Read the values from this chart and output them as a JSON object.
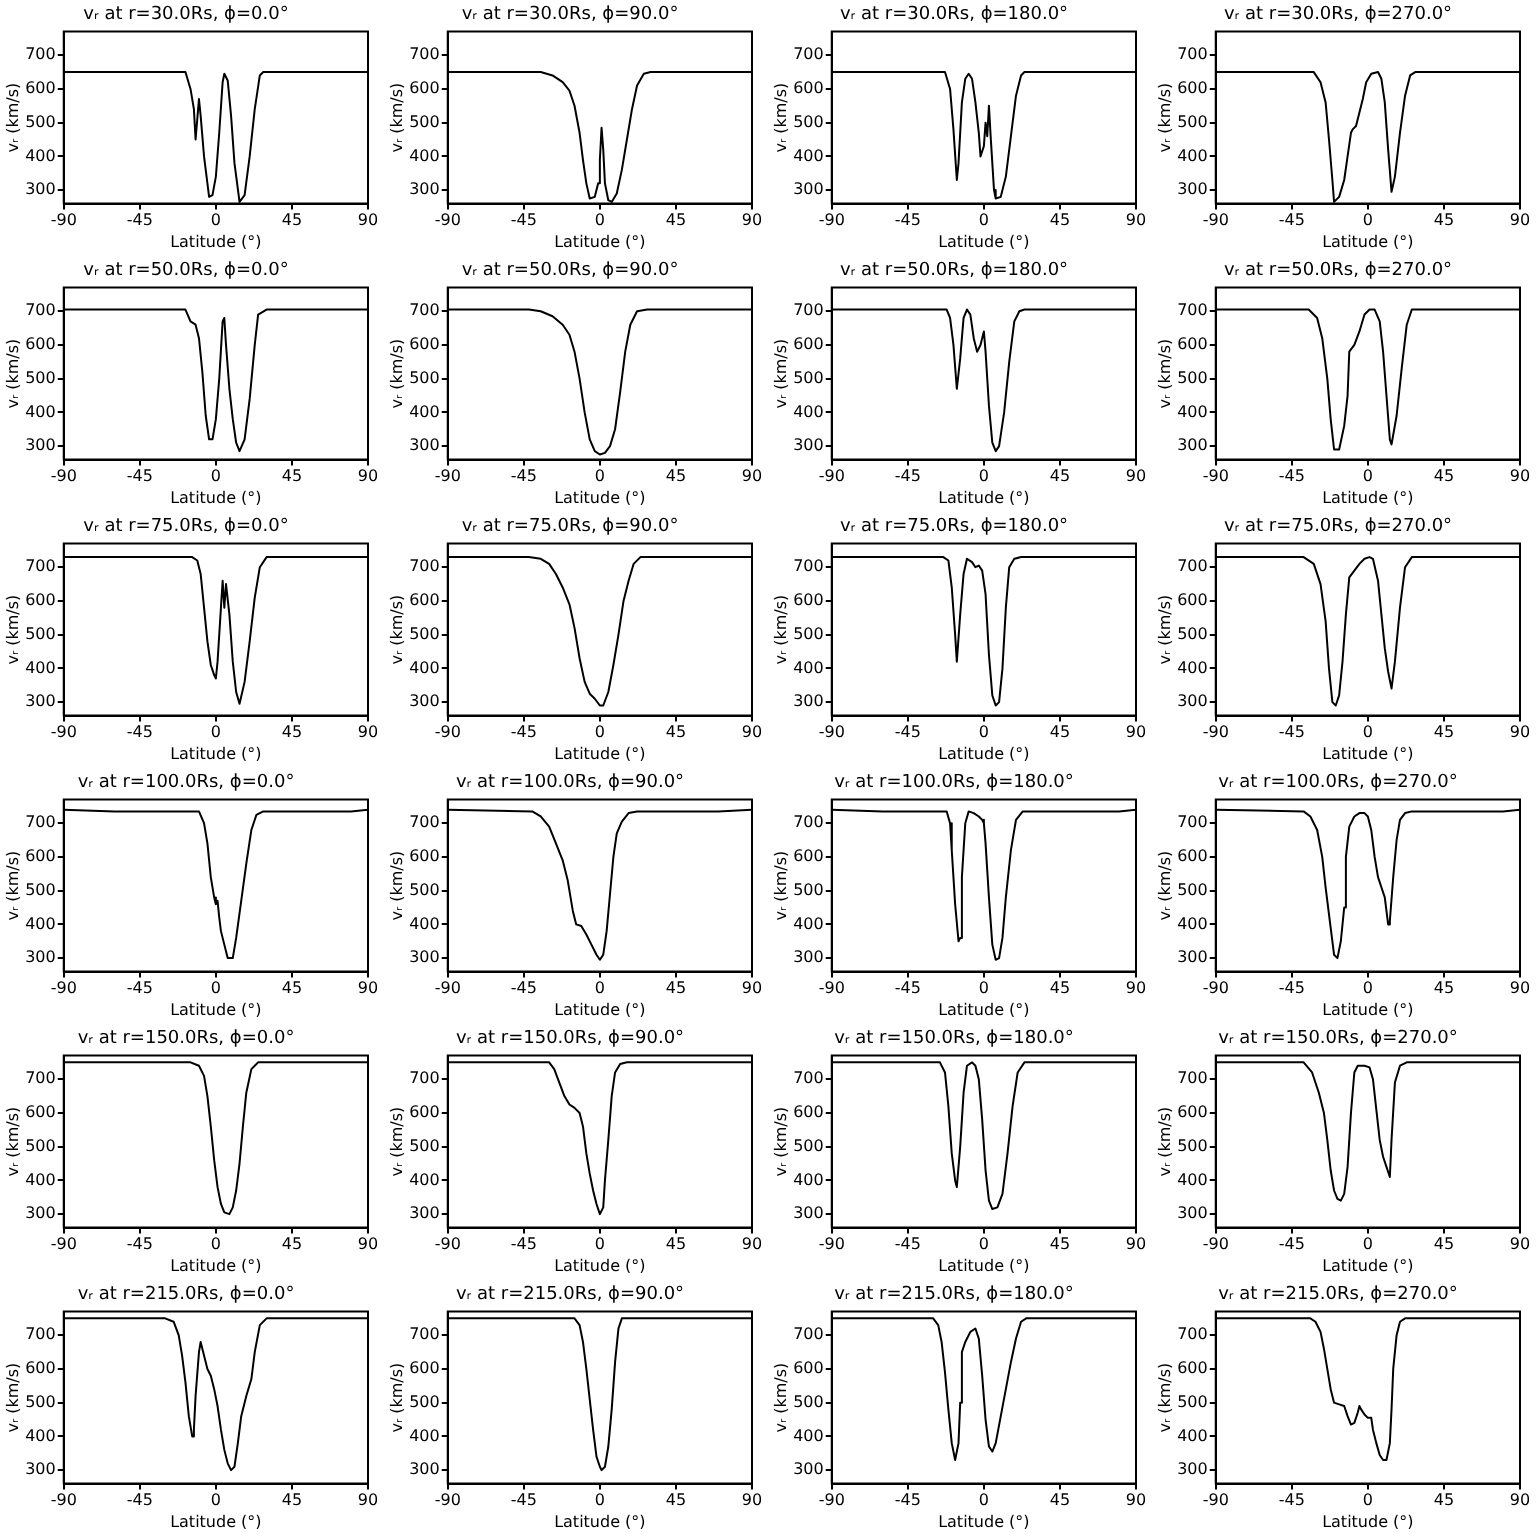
{
  "chart_data": [
    {
      "type": "line",
      "title": "vᵣ at r=30.0Rs, ϕ=0.0°",
      "xlabel": "Latitude (°)",
      "ylabel": "vᵣ (km/s)",
      "color": "#000000",
      "xlim": [
        -90,
        90
      ],
      "xticks": [
        -90,
        -45,
        0,
        45,
        90
      ],
      "ylim": [
        260,
        770
      ],
      "yticks": [
        300,
        400,
        500,
        600,
        700
      ],
      "x": [
        -90,
        -18,
        -15,
        -13,
        -12,
        -11,
        -10,
        -9,
        -7,
        -4,
        -2,
        0,
        2,
        4,
        5,
        7,
        9,
        11,
        14,
        17,
        20,
        23,
        26,
        28,
        90
      ],
      "values": [
        650,
        650,
        600,
        540,
        450,
        510,
        570,
        520,
        400,
        280,
        285,
        340,
        470,
        620,
        645,
        625,
        520,
        380,
        265,
        285,
        400,
        540,
        640,
        650,
        650
      ]
    },
    {
      "type": "line",
      "title": "vᵣ at r=30.0Rs, ϕ=90.0°",
      "xlabel": "Latitude (°)",
      "ylabel": "vᵣ (km/s)",
      "color": "#000000",
      "xlim": [
        -90,
        90
      ],
      "xticks": [
        -90,
        -45,
        0,
        45,
        90
      ],
      "ylim": [
        260,
        770
      ],
      "yticks": [
        300,
        400,
        500,
        600,
        700
      ],
      "x": [
        -90,
        -35,
        -28,
        -22,
        -18,
        -15,
        -12,
        -10,
        -8,
        -6,
        -3,
        -1,
        0,
        1,
        2,
        3,
        5,
        7,
        10,
        13,
        16,
        19,
        22,
        26,
        30,
        90
      ],
      "values": [
        650,
        650,
        640,
        620,
        595,
        550,
        470,
        390,
        320,
        275,
        280,
        320,
        390,
        485,
        420,
        320,
        270,
        265,
        290,
        360,
        450,
        540,
        610,
        645,
        650,
        650
      ]
    },
    {
      "type": "line",
      "title": "vᵣ at r=30.0Rs, ϕ=180.0°",
      "xlabel": "Latitude (°)",
      "ylabel": "vᵣ (km/s)",
      "color": "#000000",
      "xlim": [
        -90,
        90
      ],
      "xticks": [
        -90,
        -45,
        0,
        45,
        90
      ],
      "ylim": [
        260,
        770
      ],
      "yticks": [
        300,
        400,
        500,
        600,
        700
      ],
      "x": [
        -90,
        -23,
        -20,
        -18,
        -16,
        -15,
        -13,
        -11,
        -9,
        -7,
        -5,
        -3,
        -2,
        0,
        1,
        2,
        3,
        4,
        6,
        7,
        10,
        13,
        16,
        19,
        22,
        24,
        90
      ],
      "values": [
        650,
        650,
        600,
        480,
        330,
        380,
        560,
        630,
        645,
        630,
        560,
        470,
        400,
        430,
        500,
        460,
        550,
        460,
        300,
        275,
        280,
        340,
        460,
        580,
        640,
        650,
        650
      ]
    },
    {
      "type": "line",
      "title": "vᵣ at r=30.0Rs, ϕ=270.0°",
      "xlabel": "Latitude (°)",
      "ylabel": "vᵣ (km/s)",
      "color": "#000000",
      "xlim": [
        -90,
        90
      ],
      "xticks": [
        -90,
        -45,
        0,
        45,
        90
      ],
      "ylim": [
        260,
        770
      ],
      "yticks": [
        300,
        400,
        500,
        600,
        700
      ],
      "x": [
        -90,
        -32,
        -28,
        -25,
        -23,
        -21,
        -20,
        -17,
        -14,
        -12,
        -10,
        -9,
        -7,
        -5,
        -3,
        -1,
        2,
        6,
        8,
        10,
        12,
        14,
        16,
        19,
        22,
        25,
        28,
        90
      ],
      "values": [
        650,
        650,
        620,
        560,
        450,
        330,
        265,
        280,
        330,
        400,
        470,
        480,
        490,
        530,
        570,
        620,
        645,
        650,
        630,
        560,
        420,
        295,
        340,
        470,
        580,
        640,
        650,
        650
      ]
    },
    {
      "type": "line",
      "title": "vᵣ at r=50.0Rs, ϕ=0.0°",
      "xlabel": "Latitude (°)",
      "ylabel": "vᵣ (km/s)",
      "color": "#000000",
      "xlim": [
        -90,
        90
      ],
      "xticks": [
        -90,
        -45,
        0,
        45,
        90
      ],
      "ylim": [
        260,
        770
      ],
      "yticks": [
        300,
        400,
        500,
        600,
        700
      ],
      "x": [
        -90,
        -18,
        -15,
        -12,
        -10,
        -8,
        -6,
        -4,
        -2,
        0,
        2,
        4,
        5,
        6,
        8,
        10,
        12,
        14,
        17,
        20,
        23,
        25,
        30,
        90
      ],
      "values": [
        705,
        705,
        670,
        660,
        620,
        520,
        390,
        320,
        320,
        380,
        500,
        670,
        680,
        600,
        470,
        380,
        310,
        285,
        320,
        440,
        600,
        690,
        705,
        705
      ]
    },
    {
      "type": "line",
      "title": "vᵣ at r=50.0Rs, ϕ=90.0°",
      "xlabel": "Latitude (°)",
      "ylabel": "vᵣ (km/s)",
      "color": "#000000",
      "xlim": [
        -90,
        90
      ],
      "xticks": [
        -90,
        -45,
        0,
        45,
        90
      ],
      "ylim": [
        260,
        770
      ],
      "yticks": [
        300,
        400,
        500,
        600,
        700
      ],
      "x": [
        -90,
        -42,
        -35,
        -28,
        -22,
        -18,
        -15,
        -12,
        -9,
        -6,
        -3,
        0,
        3,
        6,
        9,
        12,
        15,
        18,
        22,
        28,
        90
      ],
      "values": [
        705,
        705,
        700,
        685,
        660,
        630,
        580,
        500,
        400,
        320,
        285,
        275,
        280,
        300,
        350,
        460,
        580,
        660,
        700,
        705,
        705
      ]
    },
    {
      "type": "line",
      "title": "vᵣ at r=50.0Rs, ϕ=180.0°",
      "xlabel": "Latitude (°)",
      "ylabel": "vᵣ (km/s)",
      "color": "#000000",
      "xlim": [
        -90,
        90
      ],
      "xticks": [
        -90,
        -45,
        0,
        45,
        90
      ],
      "ylim": [
        260,
        770
      ],
      "yticks": [
        300,
        400,
        500,
        600,
        700
      ],
      "x": [
        -90,
        -22,
        -20,
        -18,
        -16,
        -14,
        -12,
        -10,
        -8,
        -6,
        -4,
        -2,
        0,
        1,
        3,
        5,
        7,
        9,
        12,
        15,
        18,
        21,
        24,
        90
      ],
      "values": [
        705,
        705,
        680,
        600,
        470,
        560,
        680,
        705,
        690,
        620,
        580,
        600,
        640,
        580,
        420,
        310,
        285,
        300,
        400,
        550,
        670,
        700,
        705,
        705
      ]
    },
    {
      "type": "line",
      "title": "vᵣ at r=50.0Rs, ϕ=270.0°",
      "xlabel": "Latitude (°)",
      "ylabel": "vᵣ (km/s)",
      "color": "#000000",
      "xlim": [
        -90,
        90
      ],
      "xticks": [
        -90,
        -45,
        0,
        45,
        90
      ],
      "ylim": [
        260,
        770
      ],
      "yticks": [
        300,
        400,
        500,
        600,
        700
      ],
      "x": [
        -90,
        -35,
        -30,
        -27,
        -24,
        -22,
        -20,
        -17,
        -14,
        -12,
        -11,
        -8,
        -5,
        -2,
        1,
        4,
        7,
        9,
        11,
        13,
        14,
        17,
        20,
        23,
        26,
        90
      ],
      "values": [
        705,
        705,
        680,
        620,
        500,
        380,
        290,
        290,
        360,
        450,
        580,
        600,
        640,
        690,
        705,
        705,
        670,
        580,
        450,
        320,
        305,
        390,
        530,
        660,
        705,
        705
      ]
    },
    {
      "type": "line",
      "title": "vᵣ at r=75.0Rs, ϕ=0.0°",
      "xlabel": "Latitude (°)",
      "ylabel": "vᵣ (km/s)",
      "color": "#000000",
      "xlim": [
        -90,
        90
      ],
      "xticks": [
        -90,
        -45,
        0,
        45,
        90
      ],
      "ylim": [
        260,
        770
      ],
      "yticks": [
        300,
        400,
        500,
        600,
        700
      ],
      "x": [
        -90,
        -14,
        -11,
        -9,
        -7,
        -5,
        -3,
        -1,
        0,
        1,
        3,
        4,
        5,
        6,
        8,
        10,
        12,
        14,
        17,
        20,
        23,
        26,
        30,
        90
      ],
      "values": [
        730,
        730,
        720,
        680,
        580,
        480,
        410,
        380,
        370,
        420,
        580,
        660,
        580,
        650,
        560,
        420,
        330,
        295,
        360,
        480,
        610,
        700,
        730,
        730
      ]
    },
    {
      "type": "line",
      "title": "vᵣ at r=75.0Rs, ϕ=90.0°",
      "xlabel": "Latitude (°)",
      "ylabel": "vᵣ (km/s)",
      "color": "#000000",
      "xlim": [
        -90,
        90
      ],
      "xticks": [
        -90,
        -45,
        0,
        45,
        90
      ],
      "ylim": [
        260,
        770
      ],
      "yticks": [
        300,
        400,
        500,
        600,
        700
      ],
      "x": [
        -90,
        -42,
        -35,
        -30,
        -26,
        -22,
        -18,
        -15,
        -12,
        -9,
        -6,
        -3,
        0,
        2,
        5,
        8,
        11,
        14,
        17,
        20,
        24,
        90
      ],
      "values": [
        730,
        730,
        725,
        710,
        680,
        640,
        590,
        520,
        430,
        360,
        325,
        310,
        290,
        290,
        330,
        410,
        500,
        600,
        660,
        710,
        730,
        730
      ]
    },
    {
      "type": "line",
      "title": "vᵣ at r=75.0Rs, ϕ=180.0°",
      "xlabel": "Latitude (°)",
      "ylabel": "vᵣ (km/s)",
      "color": "#000000",
      "xlim": [
        -90,
        90
      ],
      "xticks": [
        -90,
        -45,
        0,
        45,
        90
      ],
      "ylim": [
        260,
        770
      ],
      "yticks": [
        300,
        400,
        500,
        600,
        700
      ],
      "x": [
        -90,
        -24,
        -21,
        -19,
        -17,
        -16,
        -14,
        -12,
        -10,
        -7,
        -5,
        -3,
        -1,
        0,
        1,
        3,
        5,
        7,
        9,
        11,
        13,
        15,
        18,
        22,
        90
      ],
      "values": [
        730,
        730,
        720,
        640,
        500,
        420,
        560,
        680,
        725,
        715,
        700,
        705,
        690,
        690,
        620,
        440,
        320,
        290,
        300,
        400,
        580,
        700,
        725,
        730,
        730
      ]
    },
    {
      "type": "line",
      "title": "vᵣ at r=75.0Rs, ϕ=270.0°",
      "xlabel": "Latitude (°)",
      "ylabel": "vᵣ (km/s)",
      "color": "#000000",
      "xlim": [
        -90,
        90
      ],
      "xticks": [
        -90,
        -45,
        0,
        45,
        90
      ],
      "ylim": [
        260,
        770
      ],
      "yticks": [
        300,
        400,
        500,
        600,
        700
      ],
      "x": [
        -90,
        -38,
        -32,
        -28,
        -25,
        -23,
        -21,
        -19,
        -17,
        -15,
        -13,
        -11,
        -8,
        -5,
        -2,
        1,
        3,
        6,
        8,
        10,
        12,
        14,
        16,
        19,
        22,
        26,
        90
      ],
      "values": [
        730,
        730,
        710,
        650,
        540,
        400,
        300,
        290,
        320,
        420,
        560,
        670,
        690,
        710,
        725,
        730,
        725,
        660,
        560,
        460,
        390,
        340,
        420,
        580,
        700,
        730,
        730
      ]
    },
    {
      "type": "line",
      "title": "vᵣ at r=100.0Rs, ϕ=0.0°",
      "xlabel": "Latitude (°)",
      "ylabel": "vᵣ (km/s)",
      "color": "#000000",
      "xlim": [
        -90,
        90
      ],
      "xticks": [
        -90,
        -45,
        0,
        45,
        90
      ],
      "ylim": [
        260,
        770
      ],
      "yticks": [
        300,
        400,
        500,
        600,
        700
      ],
      "x": [
        -90,
        -60,
        -10,
        -7,
        -5,
        -3,
        -1,
        0,
        1,
        2,
        3,
        5,
        7,
        10,
        12,
        15,
        18,
        21,
        24,
        28,
        80,
        90
      ],
      "values": [
        740,
        735,
        735,
        700,
        640,
        540,
        480,
        460,
        470,
        420,
        380,
        340,
        300,
        300,
        360,
        470,
        580,
        680,
        725,
        735,
        735,
        740
      ]
    },
    {
      "type": "line",
      "title": "vᵣ at r=100.0Rs, ϕ=90.0°",
      "xlabel": "Latitude (°)",
      "ylabel": "vᵣ (km/s)",
      "color": "#000000",
      "xlim": [
        -90,
        90
      ],
      "xticks": [
        -90,
        -45,
        0,
        45,
        90
      ],
      "ylim": [
        260,
        770
      ],
      "yticks": [
        300,
        400,
        500,
        600,
        700
      ],
      "x": [
        -90,
        -40,
        -35,
        -30,
        -26,
        -22,
        -19,
        -16,
        -14,
        -11,
        -8,
        -5,
        -2,
        0,
        2,
        4,
        6,
        8,
        10,
        13,
        17,
        22,
        70,
        90
      ],
      "values": [
        740,
        735,
        720,
        690,
        640,
        590,
        530,
        440,
        400,
        395,
        370,
        340,
        310,
        295,
        310,
        380,
        490,
        600,
        670,
        705,
        730,
        735,
        735,
        740
      ]
    },
    {
      "type": "line",
      "title": "vᵣ at r=100.0Rs, ϕ=180.0°",
      "xlabel": "Latitude (°)",
      "ylabel": "vᵣ (km/s)",
      "color": "#000000",
      "xlim": [
        -90,
        90
      ],
      "xticks": [
        -90,
        -45,
        0,
        45,
        90
      ],
      "ylim": [
        260,
        770
      ],
      "yticks": [
        300,
        400,
        500,
        600,
        700
      ],
      "x": [
        -90,
        -60,
        -22,
        -20,
        -19,
        -17,
        -15,
        -14,
        -13,
        -11,
        -9,
        -6,
        -3,
        -1,
        0,
        1,
        3,
        5,
        7,
        9,
        11,
        13,
        16,
        19,
        23,
        80,
        90
      ],
      "values": [
        740,
        735,
        735,
        700,
        620,
        460,
        350,
        360,
        540,
        700,
        735,
        730,
        720,
        710,
        700,
        640,
        480,
        340,
        295,
        300,
        360,
        480,
        620,
        710,
        735,
        735,
        740
      ]
    },
    {
      "type": "line",
      "title": "vᵣ at r=100.0Rs, ϕ=270.0°",
      "xlabel": "Latitude (°)",
      "ylabel": "vᵣ (km/s)",
      "color": "#000000",
      "xlim": [
        -90,
        90
      ],
      "xticks": [
        -90,
        -45,
        0,
        45,
        90
      ],
      "ylim": [
        260,
        770
      ],
      "yticks": [
        300,
        400,
        500,
        600,
        700
      ],
      "x": [
        -90,
        -38,
        -34,
        -30,
        -27,
        -25,
        -22,
        -20,
        -18,
        -16,
        -14,
        -13,
        -11,
        -8,
        -5,
        -2,
        0,
        2,
        4,
        6,
        8,
        10,
        12,
        13,
        15,
        17,
        19,
        22,
        26,
        80,
        90
      ],
      "values": [
        740,
        735,
        720,
        680,
        600,
        510,
        390,
        310,
        300,
        350,
        450,
        600,
        690,
        720,
        730,
        730,
        720,
        680,
        600,
        540,
        510,
        480,
        400,
        410,
        540,
        650,
        710,
        730,
        735,
        735,
        740
      ]
    },
    {
      "type": "line",
      "title": "vᵣ at r=150.0Rs, ϕ=0.0°",
      "xlabel": "Latitude (°)",
      "ylabel": "vᵣ (km/s)",
      "color": "#000000",
      "xlim": [
        -90,
        90
      ],
      "xticks": [
        -90,
        -45,
        0,
        45,
        90
      ],
      "ylim": [
        260,
        770
      ],
      "yticks": [
        300,
        400,
        500,
        600,
        700
      ],
      "x": [
        -90,
        -15,
        -10,
        -7,
        -5,
        -3,
        -1,
        1,
        3,
        5,
        8,
        10,
        12,
        14,
        16,
        18,
        21,
        25,
        90
      ],
      "values": [
        750,
        750,
        740,
        710,
        650,
        560,
        460,
        380,
        330,
        305,
        300,
        320,
        370,
        450,
        560,
        660,
        730,
        750,
        750
      ]
    },
    {
      "type": "line",
      "title": "vᵣ at r=150.0Rs, ϕ=90.0°",
      "xlabel": "Latitude (°)",
      "ylabel": "vᵣ (km/s)",
      "color": "#000000",
      "xlim": [
        -90,
        90
      ],
      "xticks": [
        -90,
        -45,
        0,
        45,
        90
      ],
      "ylim": [
        260,
        770
      ],
      "yticks": [
        300,
        400,
        500,
        600,
        700
      ],
      "x": [
        -90,
        -30,
        -27,
        -24,
        -21,
        -18,
        -15,
        -12,
        -10,
        -8,
        -6,
        -4,
        -2,
        0,
        2,
        3,
        5,
        7,
        9,
        12,
        16,
        90
      ],
      "values": [
        750,
        750,
        730,
        690,
        650,
        625,
        615,
        600,
        560,
        480,
        420,
        370,
        330,
        300,
        320,
        400,
        520,
        650,
        720,
        745,
        750,
        750
      ]
    },
    {
      "type": "line",
      "title": "vᵣ at r=150.0Rs, ϕ=180.0°",
      "xlabel": "Latitude (°)",
      "ylabel": "vᵣ (km/s)",
      "color": "#000000",
      "xlim": [
        -90,
        90
      ],
      "xticks": [
        -90,
        -45,
        0,
        45,
        90
      ],
      "ylim": [
        260,
        770
      ],
      "yticks": [
        300,
        400,
        500,
        600,
        700
      ],
      "x": [
        -90,
        -26,
        -23,
        -21,
        -19,
        -17,
        -16,
        -14,
        -12,
        -10,
        -7,
        -5,
        -3,
        -1,
        1,
        3,
        5,
        8,
        11,
        14,
        17,
        20,
        24,
        90
      ],
      "values": [
        750,
        750,
        720,
        620,
        480,
        400,
        380,
        500,
        660,
        740,
        750,
        740,
        700,
        580,
        430,
        340,
        315,
        320,
        360,
        480,
        620,
        720,
        750,
        750
      ]
    },
    {
      "type": "line",
      "title": "vᵣ at r=150.0Rs, ϕ=270.0°",
      "xlabel": "Latitude (°)",
      "ylabel": "vᵣ (km/s)",
      "color": "#000000",
      "xlim": [
        -90,
        90
      ],
      "xticks": [
        -90,
        -45,
        0,
        45,
        90
      ],
      "ylim": [
        260,
        770
      ],
      "yticks": [
        300,
        400,
        500,
        600,
        700
      ],
      "x": [
        -90,
        -38,
        -33,
        -29,
        -26,
        -24,
        -22,
        -20,
        -18,
        -16,
        -14,
        -12,
        -10,
        -8,
        -6,
        -2,
        1,
        3,
        5,
        7,
        9,
        11,
        13,
        14,
        16,
        19,
        23,
        90
      ],
      "values": [
        750,
        750,
        720,
        660,
        600,
        520,
        430,
        370,
        345,
        340,
        360,
        440,
        600,
        720,
        740,
        740,
        735,
        700,
        610,
        520,
        470,
        440,
        410,
        520,
        690,
        740,
        750,
        750
      ]
    },
    {
      "type": "line",
      "title": "vᵣ at r=215.0Rs, ϕ=0.0°",
      "xlabel": "Latitude (°)",
      "ylabel": "vᵣ (km/s)",
      "color": "#000000",
      "xlim": [
        -90,
        90
      ],
      "xticks": [
        -90,
        -45,
        0,
        45,
        90
      ],
      "ylim": [
        260,
        770
      ],
      "yticks": [
        300,
        400,
        500,
        600,
        700
      ],
      "x": [
        -90,
        -30,
        -25,
        -22,
        -20,
        -18,
        -16,
        -14,
        -13,
        -12,
        -10,
        -9,
        -7,
        -5,
        -3,
        -1,
        1,
        3,
        5,
        7,
        9,
        11,
        13,
        15,
        18,
        21,
        23,
        26,
        30,
        90
      ],
      "values": [
        750,
        750,
        740,
        700,
        640,
        560,
        460,
        400,
        420,
        520,
        650,
        680,
        640,
        600,
        580,
        540,
        490,
        420,
        360,
        320,
        300,
        310,
        380,
        460,
        520,
        570,
        650,
        730,
        750,
        750
      ]
    },
    {
      "type": "line",
      "title": "vᵣ at r=215.0Rs, ϕ=90.0°",
      "xlabel": "Latitude (°)",
      "ylabel": "vᵣ (km/s)",
      "color": "#000000",
      "xlim": [
        -90,
        90
      ],
      "xticks": [
        -90,
        -45,
        0,
        45,
        90
      ],
      "ylim": [
        260,
        770
      ],
      "yticks": [
        300,
        400,
        500,
        600,
        700
      ],
      "x": [
        -90,
        -15,
        -12,
        -10,
        -8,
        -6,
        -4,
        -2,
        0,
        1,
        3,
        5,
        7,
        9,
        11,
        13,
        90
      ],
      "values": [
        750,
        750,
        730,
        680,
        600,
        510,
        420,
        340,
        310,
        300,
        310,
        370,
        480,
        620,
        720,
        750,
        750
      ]
    },
    {
      "type": "line",
      "title": "vᵣ at r=215.0Rs, ϕ=180.0°",
      "xlabel": "Latitude (°)",
      "ylabel": "vᵣ (km/s)",
      "color": "#000000",
      "xlim": [
        -90,
        90
      ],
      "xticks": [
        -90,
        -45,
        0,
        45,
        90
      ],
      "ylim": [
        260,
        770
      ],
      "yticks": [
        300,
        400,
        500,
        600,
        700
      ],
      "x": [
        -90,
        -30,
        -27,
        -25,
        -23,
        -21,
        -19,
        -17,
        -15,
        -14,
        -13,
        -11,
        -8,
        -5,
        -3,
        -1,
        1,
        3,
        5,
        7,
        10,
        13,
        16,
        19,
        22,
        25,
        90
      ],
      "values": [
        750,
        750,
        730,
        680,
        590,
        480,
        380,
        330,
        380,
        500,
        650,
        680,
        710,
        720,
        690,
        580,
        450,
        370,
        355,
        380,
        460,
        540,
        620,
        690,
        740,
        750,
        750
      ]
    },
    {
      "type": "line",
      "title": "vᵣ at r=215.0Rs, ϕ=270.0°",
      "xlabel": "Latitude (°)",
      "ylabel": "vᵣ (km/s)",
      "color": "#000000",
      "xlim": [
        -90,
        90
      ],
      "xticks": [
        -90,
        -45,
        0,
        45,
        90
      ],
      "ylim": [
        260,
        770
      ],
      "yticks": [
        300,
        400,
        500,
        600,
        700
      ],
      "x": [
        -90,
        -34,
        -31,
        -28,
        -26,
        -24,
        -22,
        -20,
        -17,
        -14,
        -12,
        -10,
        -8,
        -6,
        -5,
        -4,
        -2,
        0,
        2,
        3,
        5,
        7,
        9,
        11,
        13,
        14,
        15,
        17,
        19,
        22,
        90
      ],
      "values": [
        750,
        750,
        740,
        710,
        660,
        600,
        540,
        500,
        495,
        490,
        460,
        435,
        440,
        470,
        490,
        480,
        465,
        455,
        455,
        420,
        380,
        345,
        330,
        330,
        380,
        480,
        600,
        700,
        740,
        750,
        750
      ]
    }
  ]
}
